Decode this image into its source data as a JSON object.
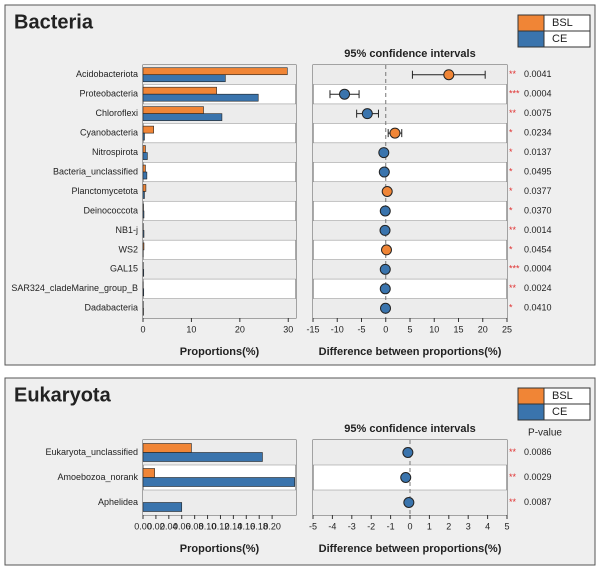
{
  "chart_data": [
    {
      "type": "extended_error_bar",
      "title": "Bacteria",
      "categories": [
        "Acidobacteriota",
        "Proteobacteria",
        "Chloroflexi",
        "Cyanobacteria",
        "Nitrospirota",
        "Bacteria_unclassified",
        "Planctomycetota",
        "Deinococcota",
        "NB1-j",
        "WS2",
        "GAL15",
        "SAR324_cladeMarine_group_B",
        "Dadabacteria"
      ],
      "series": [
        {
          "name": "BSL",
          "color": "#f08536",
          "values": [
            29.8,
            15.2,
            12.5,
            2.2,
            0.5,
            0.5,
            0.6,
            0.1,
            0.05,
            0.2,
            0.05,
            0.05,
            0.05
          ]
        },
        {
          "name": "CE",
          "color": "#3a74ad",
          "values": [
            17,
            23.8,
            16.3,
            0.3,
            0.9,
            0.8,
            0.3,
            0.2,
            0.2,
            0.05,
            0.15,
            0.15,
            0.1
          ]
        }
      ],
      "xlabel": "Proportions(%)",
      "xlim": [
        0,
        31.6
      ],
      "xticks": [
        0,
        10,
        20,
        30
      ],
      "ci_title": "95% confidence intervals",
      "diff_xlabel": "Difference between proportions(%)",
      "diff_xlim": [
        -15,
        25
      ],
      "diff_xticks": [
        -15,
        -10,
        -5,
        0,
        5,
        10,
        15,
        20,
        25
      ],
      "difference": {
        "values": [
          13,
          -8.5,
          -3.8,
          1.9,
          -0.4,
          -0.3,
          0.3,
          -0.1,
          -0.15,
          0.15,
          -0.1,
          -0.1,
          -0.05
        ],
        "lower": [
          5.5,
          -11.5,
          -6,
          0.5,
          -0.6,
          -0.5,
          0.1,
          -0.2,
          -0.25,
          0.05,
          -0.2,
          -0.2,
          -0.1
        ],
        "upper": [
          20.5,
          -5.5,
          -1.5,
          3.3,
          -0.2,
          -0.1,
          0.5,
          0,
          -0.05,
          0.25,
          0,
          0,
          0
        ]
      },
      "significance": [
        "**",
        "***",
        "**",
        "*",
        "*",
        "*",
        "*",
        "*",
        "**",
        "*",
        "***",
        "**",
        "*"
      ],
      "p_values": [
        "0.0041",
        "0.0004",
        "0.0075",
        "0.0234",
        "0.0137",
        "0.0495",
        "0.0377",
        "0.0370",
        "0.0014",
        "0.0454",
        "0.0004",
        "0.0024",
        "0.0410"
      ]
    },
    {
      "type": "extended_error_bar",
      "title": "Eukaryota",
      "categories": [
        "Eukaryota_unclassified",
        "Amoebozoa_norank",
        "Aphelidea"
      ],
      "series": [
        {
          "name": "BSL",
          "color": "#f08536",
          "values": [
            0.075,
            0.018,
            0
          ]
        },
        {
          "name": "CE",
          "color": "#3a74ad",
          "values": [
            0.185,
            0.235,
            0.06
          ]
        }
      ],
      "xlabel": "Proportions(%)",
      "xlim": [
        0,
        0.237
      ],
      "xticks": [
        {
          "value": 0,
          "label": "0.00"
        },
        {
          "value": 0.02,
          "label": "0.02"
        },
        {
          "value": 0.04,
          "label": "0.04"
        },
        {
          "value": 0.06,
          "label": "0.06"
        },
        {
          "value": 0.08,
          "label": "0.08"
        },
        {
          "value": 0.1,
          "label": "0.10"
        },
        {
          "value": 0.12,
          "label": "0.12"
        },
        {
          "value": 0.14,
          "label": "0.14"
        },
        {
          "value": 0.16,
          "label": "0.16"
        },
        {
          "value": 0.18,
          "label": "0.18"
        },
        {
          "value": 0.2,
          "label": "0.20"
        }
      ],
      "ci_title": "95% confidence intervals",
      "diff_xlabel": "Difference between proportions(%)",
      "diff_xlim": [
        -5,
        5
      ],
      "diff_xticks": [
        -5,
        -4,
        -3,
        -2,
        -1,
        0,
        1,
        2,
        3,
        4,
        5
      ],
      "p_label": "P-value",
      "difference": {
        "values": [
          -0.11,
          -0.22,
          -0.06
        ],
        "lower": [
          -0.2,
          -0.32,
          -0.12
        ],
        "upper": [
          -0.02,
          -0.12,
          0
        ]
      },
      "significance": [
        "**",
        "**",
        "**"
      ],
      "p_values": [
        "0.0086",
        "0.0029",
        "0.0087"
      ]
    }
  ]
}
